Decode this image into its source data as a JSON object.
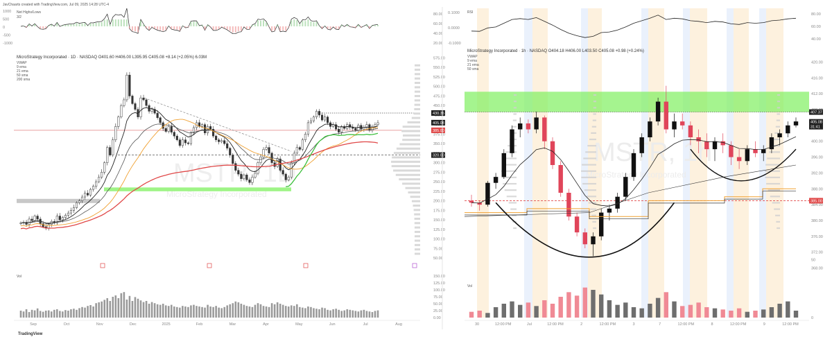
{
  "header": {
    "created_by": "JavChaarts created with TradingView.com, Jul 09, 2025 14:28 UTC-4"
  },
  "footer": {
    "brand": "TradingView"
  },
  "chart_data": [
    {
      "name": "left-daily",
      "type": "candlestick",
      "symbol": "MicroStrategy Incorporated · 1D · NASDAQ",
      "ohlc_text": "O401.60 H406.00 L395.95 C405.08 +8.14 (+2.05%)",
      "volume_text": "6.03M",
      "watermark": "MSTR, 1D",
      "watermark_sub": "MicroStrategy Incorporated",
      "legend": [
        "VWAP",
        "9 ema",
        "21 ema",
        "50 sma",
        "200 sma"
      ],
      "indicator_panel": {
        "title": "Net Highs/Lows",
        "sub": "3/2",
        "left_ticks": [
          "1000",
          "500",
          "0",
          "-500",
          "-1000"
        ],
        "right_ticks": [
          "80.00",
          "60.00",
          "40.00",
          "20.00"
        ]
      },
      "y_ticks": [
        "575.00",
        "550.00",
        "525.00",
        "500.00",
        "475.00",
        "450.00",
        "425.00",
        "400.00",
        "375.00",
        "350.00",
        "325.00",
        "300.00",
        "275.00",
        "250.00",
        "225.00",
        "200.00",
        "175.00",
        "150.00",
        "125.00",
        "100.00",
        "75.00",
        "50.00"
      ],
      "vol_ticks": [
        "150.00",
        "125.00",
        "100.00",
        "75.00",
        "50.00",
        "25.00",
        "0.00"
      ],
      "x_ticks": [
        "Sep",
        "Oct",
        "Nov",
        "Dec",
        "2025",
        "Feb",
        "Mar",
        "Apr",
        "May",
        "Jun",
        "Jul",
        "Aug"
      ],
      "price_labels": [
        {
          "text": "430.35",
          "dark": true
        },
        {
          "text": "405.08",
          "dark": true
        },
        {
          "text": "385.00",
          "dark": false
        },
        {
          "text": "320.00",
          "dark": true
        }
      ],
      "hlines": [
        {
          "value": 430.35,
          "style": "dotted"
        },
        {
          "value": 385,
          "style": "red"
        },
        {
          "value": 320,
          "style": "dashed"
        }
      ],
      "support_zone": [
        225,
        235
      ],
      "closes": [
        142,
        144,
        138,
        152,
        148,
        160,
        152,
        140,
        132,
        128,
        138,
        146,
        142,
        160,
        150,
        156,
        162,
        168,
        175,
        182,
        195,
        200,
        210,
        220,
        215,
        230,
        238,
        250,
        262,
        275,
        300,
        340,
        320,
        360,
        395,
        420,
        450,
        465,
        530,
        475,
        455,
        440,
        420,
        470,
        465,
        450,
        435,
        440,
        430,
        418,
        405,
        390,
        382,
        395,
        380,
        370,
        360,
        345,
        360,
        352,
        350,
        378,
        392,
        405,
        395,
        400,
        378,
        395,
        388,
        370,
        360,
        355,
        358,
        350,
        338,
        320,
        298,
        280,
        270,
        258,
        268,
        255,
        248,
        262,
        272,
        300,
        315,
        335,
        340,
        325,
        300,
        290,
        310,
        280,
        270,
        255,
        262,
        300,
        325,
        340,
        335,
        360,
        375,
        405,
        410,
        420,
        435,
        425,
        412,
        420,
        405,
        395,
        400,
        388,
        380,
        395,
        390,
        400,
        393,
        390,
        385,
        398,
        388,
        392,
        400,
        385,
        395,
        400,
        405
      ],
      "volume_values": [
        25,
        22,
        30,
        20,
        28,
        26,
        33,
        24,
        21,
        25,
        26,
        22,
        28,
        30,
        24,
        22,
        27,
        25,
        30,
        32,
        28,
        34,
        38,
        36,
        42,
        45,
        40,
        52,
        55,
        58,
        64,
        70,
        60,
        75,
        80,
        70,
        88,
        92,
        65,
        78,
        60,
        74,
        68,
        62,
        56,
        60,
        50,
        56,
        52,
        48,
        46,
        50,
        44,
        42,
        46,
        40,
        38,
        36,
        42,
        40,
        38,
        44,
        46,
        42,
        40,
        38,
        36,
        46,
        40,
        38,
        42,
        36,
        34,
        38,
        44,
        48,
        52,
        58,
        55,
        50,
        46,
        42,
        40,
        38,
        46,
        52,
        48,
        42,
        40,
        38,
        52,
        48,
        55,
        50,
        46,
        42,
        40,
        44,
        42,
        48,
        38,
        36,
        34,
        40,
        38,
        34,
        32,
        30,
        36,
        34,
        28,
        26,
        30,
        32,
        28,
        24,
        26,
        30,
        28,
        26,
        24,
        22,
        26,
        28,
        24,
        22,
        20,
        24,
        26
      ]
    },
    {
      "name": "right-hourly",
      "type": "candlestick",
      "symbol": "MicroStrategy Incorporated · 1h · NASDAQ",
      "ohlc_text": "O404.18 H406.00 L403.50 C405.08 +0.98 (+0.24%)",
      "watermark": "MSTR, 1h",
      "watermark_sub": "MicroStrategy Incorporated",
      "legend": [
        "VWAP",
        "9 ema",
        "21 ema",
        "50 sma"
      ],
      "indicator_panel": {
        "title": "RSI",
        "left_ticks": [
          "0.1000",
          "0.0000",
          "-0.1000"
        ],
        "right_ticks": [
          "80.00",
          "60.00",
          "40.00"
        ]
      },
      "y_ticks": [
        "420.00",
        "416.00",
        "412.00",
        "408.00",
        "404.00",
        "400.00",
        "396.00",
        "392.00",
        "388.00",
        "384.00",
        "380.00",
        "376.00",
        "372.00",
        "368.00"
      ],
      "vol_ticks": [
        "50",
        "0"
      ],
      "x_ticks": [
        "30",
        "12:00 PM",
        "Jul",
        "12:00 PM",
        "2",
        "12:00 PM",
        "3",
        "7",
        "12:00 PM",
        "8",
        "12:00 PM",
        "9",
        "12:00 PM"
      ],
      "price_labels": [
        {
          "text": "407.37",
          "dark": true
        },
        {
          "text": "405.08",
          "dark": true
        },
        {
          "text": "31:41",
          "dark": true
        },
        {
          "text": "385.00",
          "dark": false
        }
      ],
      "resistance_zone": [
        407.37,
        412.5
      ],
      "candles": [
        [
          385,
          386.5,
          383.5,
          384.5
        ],
        [
          384.5,
          385,
          382.5,
          384
        ],
        [
          384,
          390,
          383.5,
          389.5
        ],
        [
          389.5,
          392,
          388,
          391
        ],
        [
          391,
          398,
          390.5,
          397
        ],
        [
          397,
          404,
          396,
          403
        ],
        [
          403,
          406,
          401,
          404.5
        ],
        [
          404.5,
          405.5,
          402,
          403
        ],
        [
          403,
          407.5,
          402,
          406
        ],
        [
          406,
          406.5,
          398,
          400
        ],
        [
          400,
          401,
          393,
          394
        ],
        [
          394,
          395,
          386,
          387
        ],
        [
          387,
          388,
          380,
          381
        ],
        [
          381,
          382,
          376,
          377
        ],
        [
          377,
          378,
          373,
          374
        ],
        [
          374,
          377,
          371,
          376
        ],
        [
          376,
          383,
          375,
          382
        ],
        [
          382,
          384,
          380,
          383
        ],
        [
          383,
          387,
          382,
          386
        ],
        [
          386,
          392,
          385,
          391
        ],
        [
          391,
          398,
          390,
          397
        ],
        [
          397,
          402,
          396,
          401
        ],
        [
          401,
          406,
          400,
          405
        ],
        [
          405,
          411,
          404,
          410
        ],
        [
          410,
          414,
          402,
          403
        ],
        [
          403,
          407,
          401,
          405
        ],
        [
          405,
          407,
          403,
          404
        ],
        [
          404,
          405,
          399,
          401
        ],
        [
          401,
          403,
          397,
          400
        ],
        [
          400,
          402,
          396,
          398
        ],
        [
          398,
          401,
          395,
          400
        ],
        [
          400,
          402,
          397,
          399
        ],
        [
          399,
          400,
          394,
          396
        ],
        [
          396,
          398,
          393,
          395
        ],
        [
          395,
          399,
          394,
          398
        ],
        [
          398,
          400,
          396,
          397
        ],
        [
          397,
          399,
          395,
          398
        ],
        [
          398,
          402,
          397,
          401
        ],
        [
          401,
          403,
          399,
          402
        ],
        [
          402,
          405,
          401,
          404
        ],
        [
          404,
          406,
          403.5,
          405
        ]
      ],
      "volume_values": [
        5,
        6,
        4,
        9,
        12,
        14,
        11,
        13,
        10,
        15,
        12,
        18,
        22,
        19,
        26,
        24,
        20,
        15,
        11,
        13,
        9,
        8,
        12,
        17,
        22,
        14,
        10,
        11,
        13,
        9,
        8,
        7,
        6,
        8,
        5,
        6,
        7,
        9,
        12,
        14,
        6
      ]
    }
  ]
}
